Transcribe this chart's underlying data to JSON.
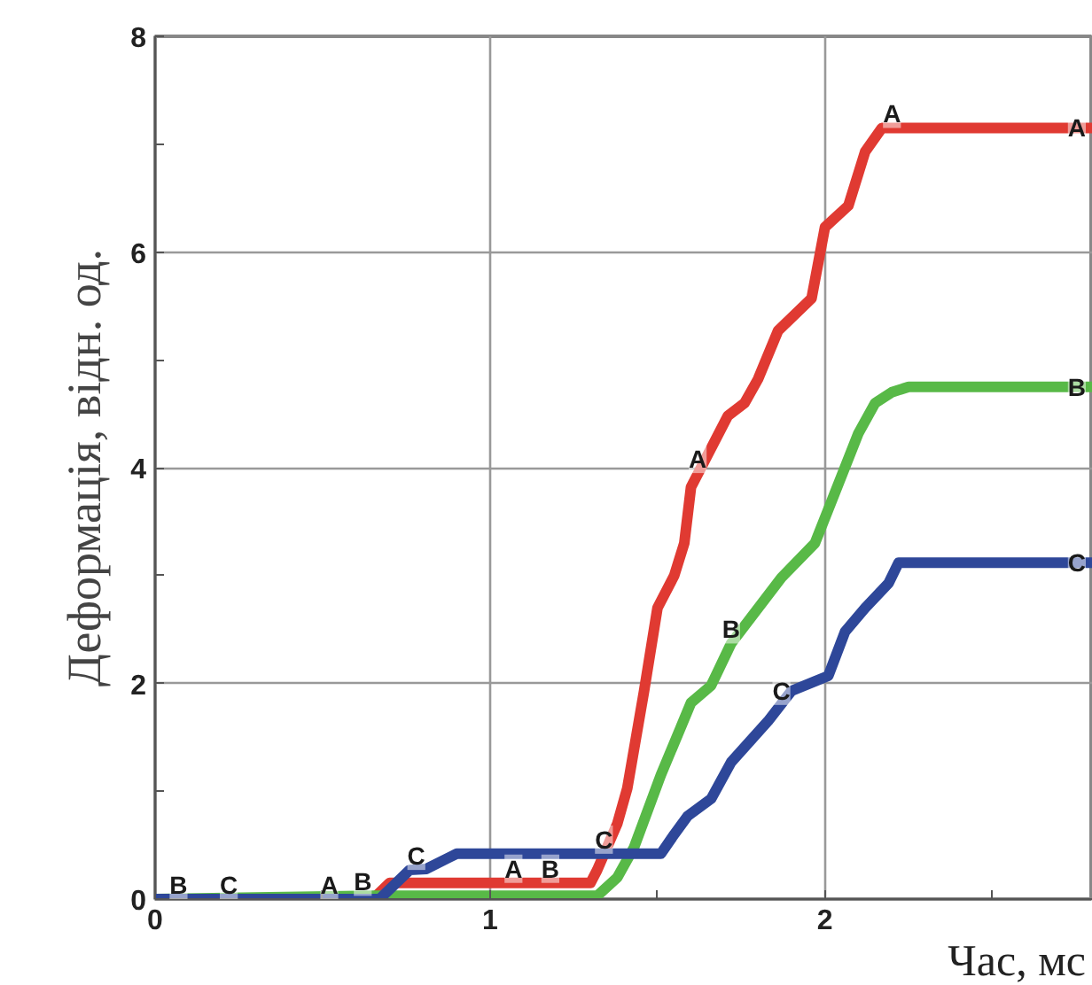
{
  "chart_data": {
    "type": "line",
    "xlabel": "Час, мс",
    "ylabel": "Деформація, відн. од.",
    "xlim": [
      0,
      2.8
    ],
    "ylim": [
      0,
      8
    ],
    "xticks": [
      0,
      {
        "value": 0.5,
        "label": null
      },
      1,
      {
        "value": 1.5,
        "label": null
      },
      2,
      {
        "value": 2.5,
        "label": null
      }
    ],
    "yticks": [
      0,
      {
        "value": 1,
        "label": null
      },
      2,
      {
        "value": 3,
        "label": null
      },
      4,
      {
        "value": 5,
        "label": null
      },
      6,
      {
        "value": 7,
        "label": null
      },
      8
    ],
    "grid": true,
    "legend": false,
    "marker": "none",
    "line_style": "solid",
    "series": [
      {
        "name": "A",
        "color": "#e03a32",
        "x": [
          0,
          0.65,
          0.7,
          1.3,
          1.32,
          1.38,
          1.41,
          1.46,
          1.5,
          1.55,
          1.58,
          1.6,
          1.71,
          1.76,
          1.8,
          1.86,
          1.96,
          2.0,
          2.07,
          2.12,
          2.17,
          2.8
        ],
        "values": [
          0,
          0,
          0.15,
          0.15,
          0.27,
          0.7,
          1.03,
          1.93,
          2.7,
          3.0,
          3.3,
          3.82,
          4.48,
          4.6,
          4.82,
          5.27,
          5.57,
          6.23,
          6.43,
          6.93,
          7.15,
          7.15
        ]
      },
      {
        "name": "B",
        "color": "#58b947",
        "x": [
          0,
          0.65,
          1.32,
          1.38,
          1.43,
          1.51,
          1.6,
          1.66,
          1.72,
          1.87,
          1.97,
          2.03,
          2.1,
          2.15,
          2.2,
          2.25,
          2.8
        ],
        "values": [
          0,
          0.03,
          0.03,
          0.2,
          0.48,
          1.15,
          1.82,
          1.98,
          2.37,
          2.98,
          3.3,
          3.77,
          4.32,
          4.6,
          4.7,
          4.75,
          4.75
        ]
      },
      {
        "name": "C",
        "color": "#2e4799",
        "x": [
          0,
          0.67,
          0.76,
          0.81,
          0.9,
          1.51,
          1.55,
          1.59,
          1.66,
          1.72,
          1.83,
          1.9,
          2.01,
          2.06,
          2.12,
          2.19,
          2.22,
          2.8
        ],
        "values": [
          0,
          0,
          0.27,
          0.28,
          0.42,
          0.42,
          0.6,
          0.77,
          0.93,
          1.27,
          1.65,
          1.93,
          2.07,
          2.48,
          2.7,
          2.93,
          3.12,
          3.12
        ]
      }
    ],
    "annotations": [
      {
        "text": "A",
        "x": 0.52,
        "y": 0
      },
      {
        "text": "A",
        "x": 1.07,
        "y": 0.15
      },
      {
        "text": "A",
        "x": 1.62,
        "y": 3.95
      },
      {
        "text": "A",
        "x": 2.2,
        "y": 7.15
      },
      {
        "text": "B",
        "x": 0.07,
        "y": 0
      },
      {
        "text": "B",
        "x": 0.62,
        "y": 0.03
      },
      {
        "text": "B",
        "x": 1.18,
        "y": 0.15
      },
      {
        "text": "B",
        "x": 1.72,
        "y": 2.37
      },
      {
        "text": "C",
        "x": 0.22,
        "y": 0
      },
      {
        "text": "C",
        "x": 0.78,
        "y": 0.27
      },
      {
        "text": "C",
        "x": 1.34,
        "y": 0.42
      },
      {
        "text": "C",
        "x": 1.87,
        "y": 1.8
      }
    ]
  }
}
